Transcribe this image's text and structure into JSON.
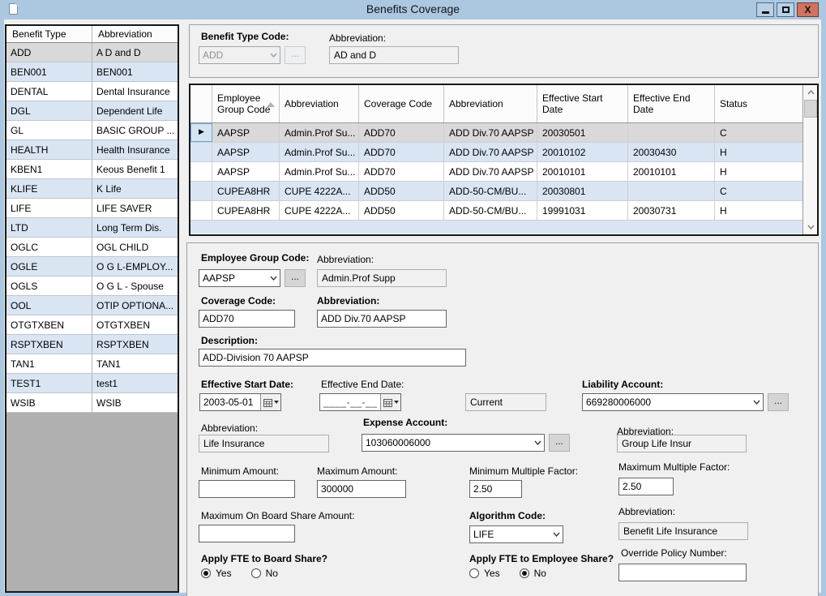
{
  "window": {
    "title": "Benefits Coverage"
  },
  "colors": {
    "titlebar": "#acc7e0",
    "close_button": "#d0735f",
    "row_alternate": "#d9e5f3",
    "row_selected": "#d9d9d9"
  },
  "benefit_type_table": {
    "columns": [
      "Benefit Type",
      "Abbreviation"
    ],
    "rows": [
      {
        "code": "ADD",
        "abbr": "A D and D",
        "selected": true
      },
      {
        "code": "BEN001",
        "abbr": "BEN001"
      },
      {
        "code": "DENTAL",
        "abbr": "Dental Insurance"
      },
      {
        "code": "DGL",
        "abbr": "Dependent Life"
      },
      {
        "code": "GL",
        "abbr": "BASIC GROUP ..."
      },
      {
        "code": "HEALTH",
        "abbr": "Health Insurance"
      },
      {
        "code": "KBEN1",
        "abbr": "Keous Benefit 1"
      },
      {
        "code": "KLIFE",
        "abbr": "K Life"
      },
      {
        "code": "LIFE",
        "abbr": "LIFE SAVER"
      },
      {
        "code": "LTD",
        "abbr": "Long Term Dis."
      },
      {
        "code": "OGLC",
        "abbr": "OGL CHILD"
      },
      {
        "code": "OGLE",
        "abbr": "O G L-EMPLOY..."
      },
      {
        "code": "OGLS",
        "abbr": "O G L - Spouse"
      },
      {
        "code": "OOL",
        "abbr": "OTIP OPTIONA..."
      },
      {
        "code": "OTGTXBEN",
        "abbr": "OTGTXBEN"
      },
      {
        "code": "RSPTXBEN",
        "abbr": "RSPTXBEN"
      },
      {
        "code": "TAN1",
        "abbr": "TAN1"
      },
      {
        "code": "TEST1",
        "abbr": "test1"
      },
      {
        "code": "WSIB",
        "abbr": "WSIB"
      }
    ]
  },
  "header_form": {
    "benefit_type_code": {
      "label": "Benefit Type Code:",
      "value": "ADD",
      "browse": "..."
    },
    "abbreviation": {
      "label": "Abbreviation:",
      "value": "AD and D"
    }
  },
  "coverage_grid": {
    "columns": [
      "",
      "Employee Group Code",
      "Abbreviation",
      "Coverage Code",
      "Abbreviation",
      "Effective Start Date",
      "Effective End Date",
      "Status"
    ],
    "rows": [
      [
        "AAPSP",
        "Admin.Prof Su...",
        "ADD70",
        "ADD Div.70 AAPSP",
        "20030501",
        "",
        "C"
      ],
      [
        "AAPSP",
        "Admin.Prof Su...",
        "ADD70",
        "ADD Div.70 AAPSP",
        "20010102",
        "20030430",
        "H"
      ],
      [
        "AAPSP",
        "Admin.Prof Su...",
        "ADD70",
        "ADD Div.70 AAPSP",
        "20010101",
        "20010101",
        "H"
      ],
      [
        "CUPEA8HR",
        "CUPE 4222A...",
        "ADD50",
        "ADD-50-CM/BU...",
        "20030801",
        "",
        "C"
      ],
      [
        "CUPEA8HR",
        "CUPE 4222A...",
        "ADD50",
        "ADD-50-CM/BU...",
        "19991031",
        "20030731",
        "H"
      ]
    ]
  },
  "detail_form": {
    "egc": {
      "label": "Employee Group Code:",
      "value": "AAPSP",
      "browse": "..."
    },
    "egc_abbr": {
      "label": "Abbreviation:",
      "value": "Admin.Prof Supp"
    },
    "coverage_code": {
      "label": "Coverage Code:",
      "value": "ADD70"
    },
    "coverage_abbr": {
      "label": "Abbreviation:",
      "value": "ADD Div.70 AAPSP"
    },
    "description": {
      "label": "Description:",
      "value": "ADD-Division 70 AAPSP"
    },
    "eff_start": {
      "label": "Effective Start Date:",
      "value": "2003-05-01"
    },
    "eff_end": {
      "label": "Effective End Date:",
      "value": "____-__-__"
    },
    "current_value": "Current",
    "liability": {
      "label": "Liability Account:",
      "value": "669280006000",
      "browse": "..."
    },
    "liability_abbr": {
      "label": "Abbreviation:",
      "value": "Group Life Insur"
    },
    "life_abbr": {
      "label": "Abbreviation:",
      "value": "Life Insurance"
    },
    "expense": {
      "label": "Expense Account:",
      "value": "103060006000",
      "browse": "..."
    },
    "min_amount": {
      "label": "Minimum Amount:",
      "value": ""
    },
    "max_amount": {
      "label": "Maximum Amount:",
      "value": "300000"
    },
    "min_factor": {
      "label": "Minimum Multiple Factor:",
      "value": "2.50"
    },
    "max_factor": {
      "label": "Maximum Multiple Factor:",
      "value": "2.50"
    },
    "max_onboard": {
      "label": "Maximum On Board Share Amount:",
      "value": ""
    },
    "algorithm": {
      "label": "Algorithm Code:",
      "value": "LIFE"
    },
    "algorithm_abbr": {
      "label": "Abbreviation:",
      "value": "Benefit Life Insurance"
    },
    "fte_board": {
      "label": "Apply FTE to Board Share?",
      "yes": "Yes",
      "no": "No",
      "selected": "Yes"
    },
    "fte_employee": {
      "label": "Apply FTE to Employee Share?",
      "yes": "Yes",
      "no": "No",
      "selected": "No"
    },
    "override_policy": {
      "label": "Override Policy Number:",
      "value": ""
    }
  }
}
